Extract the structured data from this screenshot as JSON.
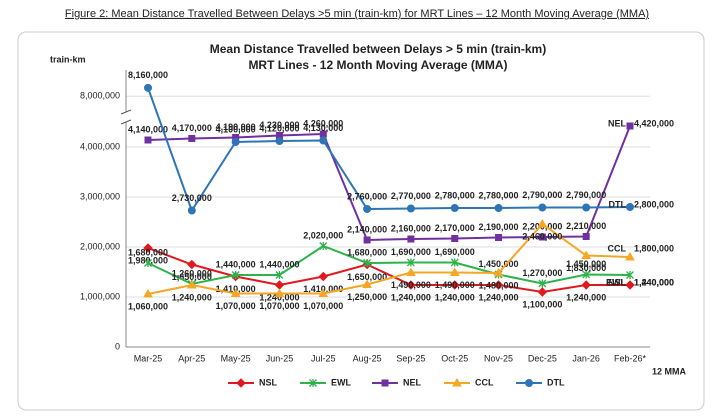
{
  "figure_caption": "Figure 2: Mean Distance Travelled Between Delays >5 min (train-km) for MRT Lines – 12 Month Moving Average (MMA)",
  "chart_data": {
    "type": "line",
    "title": "Mean Distance Travelled between Delays > 5 min (train-km)",
    "subtitle": "MRT Lines - 12 Month Moving Average (MMA)",
    "y_label": "train-km",
    "x_label": "12 MMA",
    "categories": [
      "Mar-25",
      "Apr-25",
      "May-25",
      "Jun-25",
      "Jul-25",
      "Aug-25",
      "Sep-25",
      "Oct-25",
      "Nov-25",
      "Dec-25",
      "Jan-26",
      "Feb-26*"
    ],
    "ylim": [
      0,
      8500000
    ],
    "y_break": [
      4500000,
      7700000
    ],
    "yticks": [
      0,
      {
        "value": 1000000,
        "label": "1,000,000"
      },
      {
        "value": 2000000,
        "label": "2,000,000"
      },
      {
        "value": 3000000,
        "label": "3,000,000"
      },
      {
        "value": 4000000,
        "label": "4,000,000"
      },
      {
        "value": 8000000,
        "label": "8,000,000"
      }
    ],
    "grid": true,
    "legend": "bottom",
    "series": [
      {
        "name": "NSL",
        "color": "#e0191e",
        "marker": "diamond",
        "values": [
          1980000,
          1650000,
          1410000,
          1240000,
          1410000,
          1650000,
          1240000,
          1240000,
          1240000,
          1100000,
          1240000,
          1240000
        ],
        "value_labels": [
          "1,980,000",
          "1,650,000",
          "1,410,000",
          "1,240,000",
          "1,410,000",
          "1,650,000",
          "1,240,000",
          "1,240,000",
          "1,240,000",
          "1,100,000",
          "1,240,000",
          "1,240,000"
        ]
      },
      {
        "name": "EWL",
        "color": "#2db34a",
        "marker": "star",
        "values": [
          1680000,
          1260000,
          1440000,
          1440000,
          2020000,
          1680000,
          1690000,
          1690000,
          1450000,
          1270000,
          1450000,
          1440000
        ],
        "value_labels": [
          "1,680,000",
          "1,260,000",
          "1,440,000",
          "1,440,000",
          "2,020,000",
          "1,680,000",
          "1,690,000",
          "1,690,000",
          "1,450,000",
          "1,270,000",
          "1,450,000",
          "1,440,000"
        ]
      },
      {
        "name": "NEL",
        "color": "#7030a0",
        "marker": "square",
        "values": [
          4140000,
          4170000,
          4190000,
          4230000,
          4260000,
          2140000,
          2160000,
          2170000,
          2190000,
          2200000,
          2210000,
          4420000
        ],
        "value_labels": [
          "4,140,000",
          "4,170,000",
          "4,190,000",
          "4,230,000",
          "4,260,000",
          "2,140,000",
          "2,160,000",
          "2,170,000",
          "2,190,000",
          "2,200,000",
          "2,210,000",
          "4,420,000"
        ]
      },
      {
        "name": "CCL",
        "color": "#f5a623",
        "marker": "triangle",
        "values": [
          1060000,
          1240000,
          1070000,
          1070000,
          1070000,
          1250000,
          1490000,
          1490000,
          1480000,
          2460000,
          1830000,
          1800000
        ],
        "value_labels": [
          "1,060,000",
          "1,240,000",
          "1,070,000",
          "1,070,000",
          "1,070,000",
          "1,250,000",
          "1,490,000",
          "1,490,000",
          "1,480,000",
          "2,460,000",
          "1,830,000",
          "1,800,000"
        ]
      },
      {
        "name": "DTL",
        "color": "#2e75b6",
        "marker": "circle",
        "values": [
          8160000,
          2730000,
          4100000,
          4120000,
          4130000,
          2760000,
          2770000,
          2780000,
          2780000,
          2790000,
          2790000,
          2800000
        ],
        "value_labels": [
          "8,160,000",
          "2,730,000",
          "4,100,000",
          "4,120,000",
          "4,130,000",
          "2,760,000",
          "2,770,000",
          "2,780,000",
          "2,780,000",
          "2,790,000",
          "2,790,000",
          "2,800,000"
        ]
      }
    ]
  }
}
